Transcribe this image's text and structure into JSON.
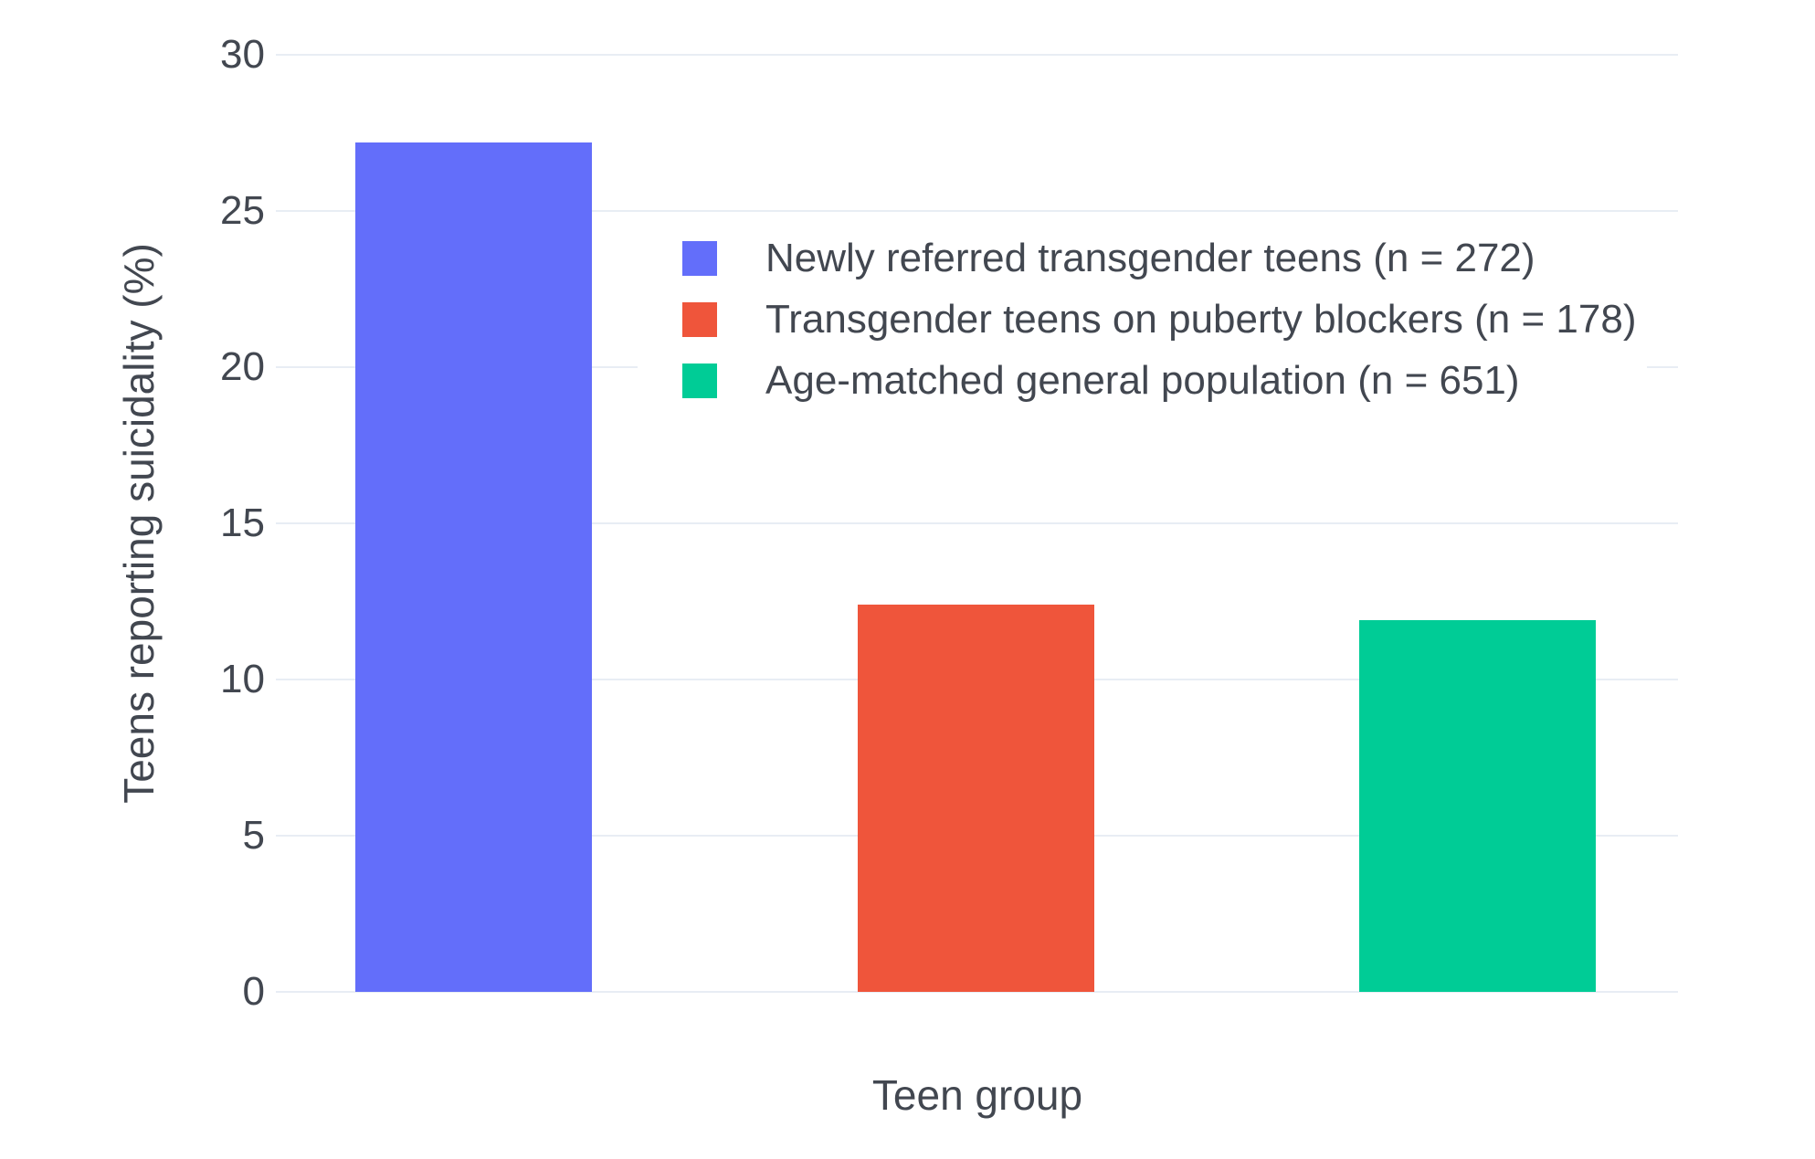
{
  "chart_data": {
    "type": "bar",
    "title": "",
    "xlabel": "Teen group",
    "ylabel": "Teens reporting suicidality (%)",
    "ylim": [
      0,
      30
    ],
    "yticks": [
      0,
      5,
      10,
      15,
      20,
      25,
      30
    ],
    "grid": true,
    "legend_position": "inside-top-right",
    "categories": [
      "Newly referred transgender teens (n = 272)",
      "Transgender teens on puberty blockers (n = 178)",
      "Age-matched general population (n = 651)"
    ],
    "bars": [
      {
        "label": "Newly referred transgender teens (n = 272)",
        "value": 27.2,
        "color": "#636EFA"
      },
      {
        "label": "Transgender teens on puberty blockers (n = 178)",
        "value": 12.4,
        "color": "#EF553B"
      },
      {
        "label": "Age-matched general population (n = 651)",
        "value": 11.9,
        "color": "#00CC96"
      }
    ]
  },
  "colors": {
    "background": "#ffffff",
    "gridline": "#E8EDF4",
    "tick_text": "#424750",
    "axis_title_text": "#424750",
    "legend_text": "#424750"
  }
}
